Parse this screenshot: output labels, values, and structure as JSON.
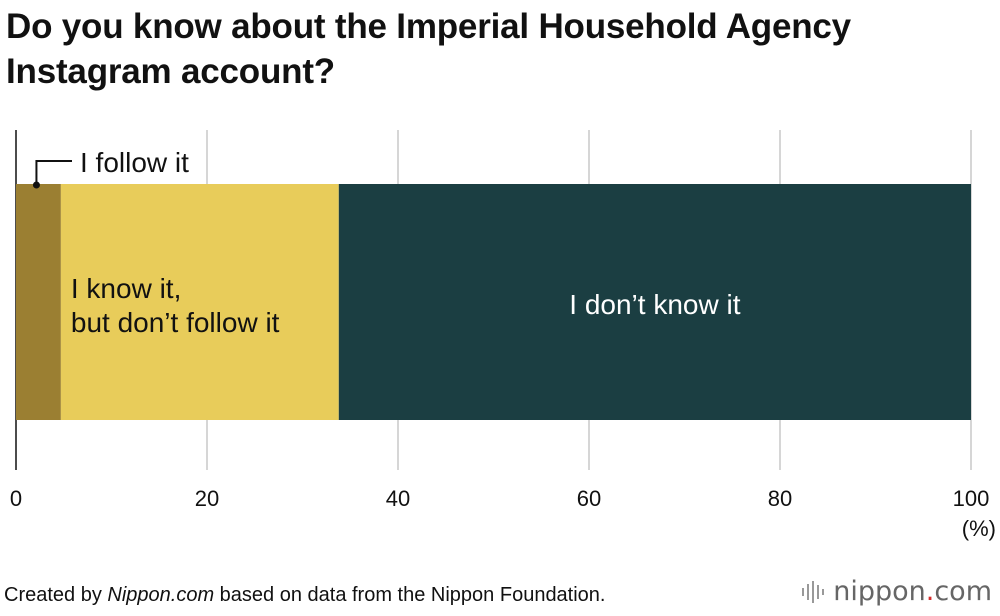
{
  "title": "Do you know about the Imperial Household Agency Instagram account?",
  "chart_data": {
    "type": "bar",
    "orientation": "horizontal",
    "stacked": true,
    "title": "Do you know about the Imperial Household Agency Instagram account?",
    "xlim": [
      0,
      100
    ],
    "ticks": [
      "0",
      "20",
      "40",
      "60",
      "80",
      "100"
    ],
    "unit_label": "(%)",
    "grid": true,
    "series": [
      {
        "name": "I follow it",
        "value": 4.7,
        "color": "#9b7f32"
      },
      {
        "name": "I know it, but don’t follow it",
        "value": 29.1,
        "color": "#e8cc5a"
      },
      {
        "name": "I don’t know it",
        "value": 66.2,
        "color": "#1b3e42"
      }
    ],
    "segment_label_lines": [
      [
        "I follow it"
      ],
      [
        "I know it,",
        "but don’t follow it"
      ],
      [
        "I don’t know it"
      ]
    ]
  },
  "footer": {
    "prefix": "Created by ",
    "source": "Nippon.com",
    "suffix": " based on data from the Nippon Foundation."
  },
  "brand": {
    "name": "nippon",
    "dot": ".",
    "tld": "com",
    "icon": "sound-wave-icon"
  }
}
